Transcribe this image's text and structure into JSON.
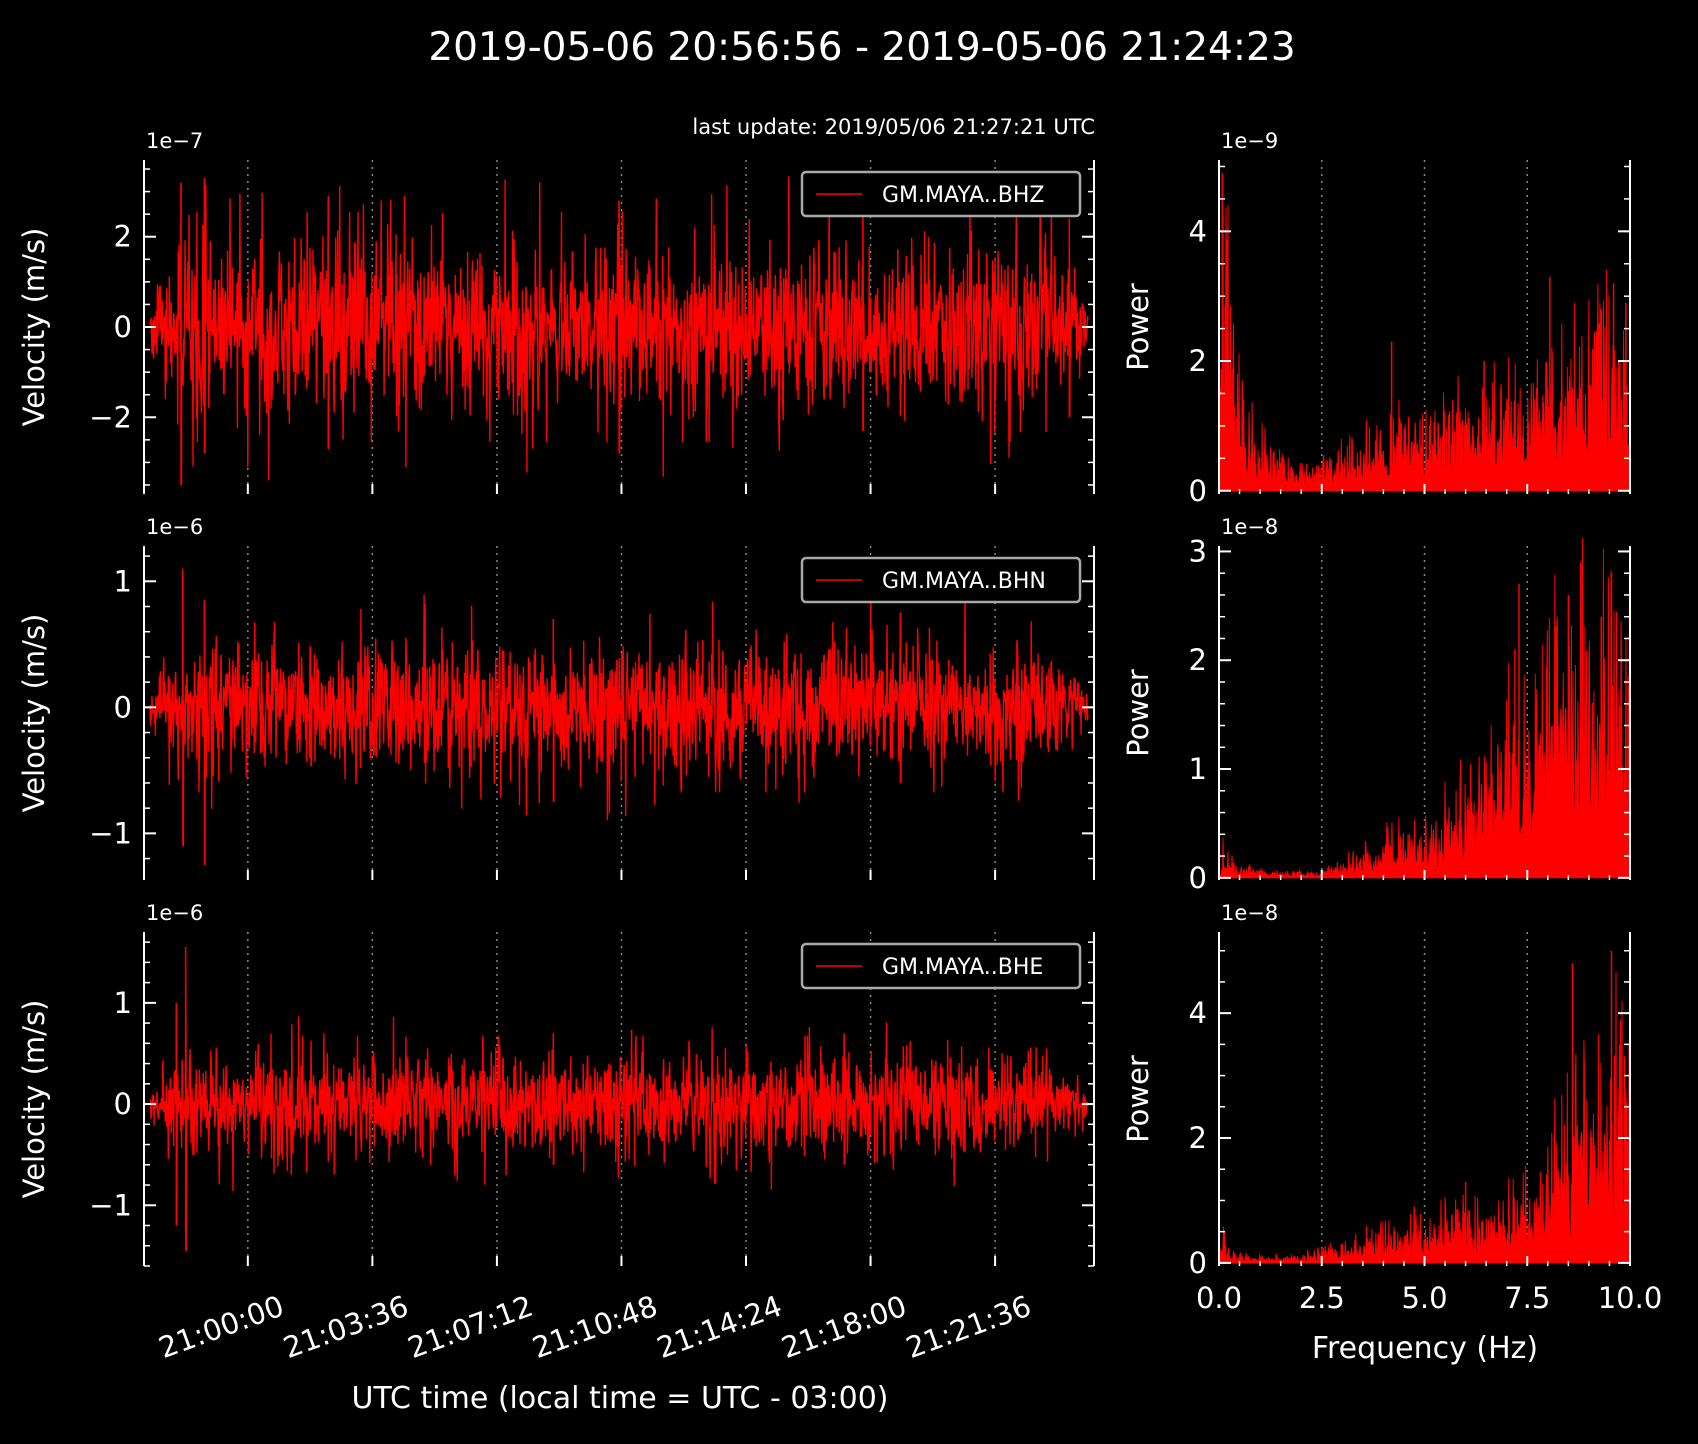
{
  "title": "2019-05-06 20:56:56  -  2019-05-06 21:24:23",
  "last_update": "last update: 2019/05/06 21:27:21 UTC",
  "colors": {
    "background": "#000000",
    "trace": "#ff0000",
    "axes": "#ffffff",
    "grid": "#888888",
    "legend_border": "#aaaaaa"
  },
  "time_axis": {
    "xlabel": "UTC time (local time = UTC - 03:00)",
    "start": "20:56:56",
    "end": "21:24:23",
    "tick_labels": [
      "21:00:00",
      "21:03:36",
      "21:07:12",
      "21:10:48",
      "21:14:24",
      "21:18:00",
      "21:21:36"
    ]
  },
  "freq_axis": {
    "xlabel": "Frequency (Hz)",
    "tick_labels": [
      "0.0",
      "2.5",
      "5.0",
      "7.5",
      "10.0"
    ],
    "ticks": [
      0,
      2.5,
      5,
      7.5,
      10
    ],
    "xlim": [
      0,
      10
    ]
  },
  "chart_data": [
    {
      "type": "line",
      "panel": "waveform",
      "channel": "GM.MAYA..BHZ",
      "ylabel": "Velocity (m/s)",
      "sci_offset": "1e−7",
      "ylim": [
        -3.7,
        3.7
      ],
      "yticks": [
        -2,
        0,
        2
      ],
      "ytick_labels": [
        "−2",
        "0",
        "2"
      ],
      "minor_step": 0.5,
      "envelope": {
        "base": 1.7,
        "rise_until": 0.05,
        "fall_from": 0.95
      },
      "peaks": [
        {
          "t": 0.033,
          "max": 3.2,
          "min": -3.5
        },
        {
          "t": 0.058,
          "max": 3.3,
          "min": -2.8
        },
        {
          "t": 0.19,
          "max": 2.9,
          "min": -2.7
        },
        {
          "t": 0.5,
          "max": 2.8,
          "min": -2.8
        },
        {
          "t": 0.76,
          "max": 2.6,
          "min": -2.3
        },
        {
          "t": 0.98,
          "max": 2.4,
          "min": -2.0
        }
      ]
    },
    {
      "type": "bar",
      "panel": "spectrum",
      "channel": "GM.MAYA..BHZ",
      "ylabel": "Power",
      "sci_offset": "1e−9",
      "ylim": [
        -0.05,
        5.1
      ],
      "yticks": [
        0,
        2,
        4
      ],
      "ytick_labels": [
        "0",
        "2",
        "4"
      ],
      "minor_step": 0.5,
      "freq": [
        0,
        0.1,
        0.3,
        0.6,
        1.0,
        1.5,
        2.0,
        2.5,
        3.0,
        3.5,
        4.0,
        4.5,
        5.0,
        5.5,
        6.0,
        6.5,
        7.0,
        7.5,
        8.0,
        8.5,
        9.0,
        9.5,
        10.0
      ],
      "power": [
        0.1,
        4.2,
        1.8,
        1.1,
        0.6,
        0.35,
        0.25,
        0.35,
        0.45,
        0.55,
        0.7,
        0.75,
        0.8,
        0.9,
        1.0,
        1.05,
        1.15,
        1.3,
        1.4,
        1.6,
        1.7,
        1.9,
        1.8
      ],
      "spikes": [
        {
          "f": 0.08,
          "p": 4.9
        },
        {
          "f": 0.17,
          "p": 3.0
        },
        {
          "f": 4.2,
          "p": 2.3
        },
        {
          "f": 6.45,
          "p": 2.0
        },
        {
          "f": 8.05,
          "p": 3.3
        },
        {
          "f": 9.3,
          "p": 2.8
        },
        {
          "f": 9.6,
          "p": 3.2
        },
        {
          "f": 9.9,
          "p": 2.9
        }
      ]
    },
    {
      "type": "line",
      "panel": "waveform",
      "channel": "GM.MAYA..BHN",
      "ylabel": "Velocity (m/s)",
      "sci_offset": "1e−6",
      "ylim": [
        -1.37,
        1.28
      ],
      "yticks": [
        -1,
        0,
        1
      ],
      "ytick_labels": [
        "−1",
        "0",
        "1"
      ],
      "minor_step": 0.2,
      "envelope": {
        "base": 0.45,
        "rise_until": 0.05,
        "fall_from": 0.95
      },
      "peaks": [
        {
          "t": 0.035,
          "max": 1.1,
          "min": -1.1
        },
        {
          "t": 0.058,
          "max": 0.85,
          "min": -1.25
        },
        {
          "t": 0.43,
          "max": 0.7,
          "min": -0.75
        },
        {
          "t": 0.8,
          "max": 0.75,
          "min": -0.6
        }
      ]
    },
    {
      "type": "bar",
      "panel": "spectrum",
      "channel": "GM.MAYA..BHN",
      "ylabel": "Power",
      "sci_offset": "1e−8",
      "ylim": [
        -0.02,
        3.05
      ],
      "yticks": [
        0,
        1,
        2,
        3
      ],
      "ytick_labels": [
        "0",
        "1",
        "2",
        "3"
      ],
      "minor_step": 0.2,
      "freq": [
        0,
        0.1,
        0.3,
        0.6,
        1.0,
        1.5,
        2.0,
        2.5,
        3.0,
        3.5,
        4.0,
        4.5,
        5.0,
        5.5,
        6.0,
        6.5,
        7.0,
        7.5,
        8.0,
        8.5,
        9.0,
        9.5,
        10.0
      ],
      "power": [
        0.05,
        0.2,
        0.1,
        0.07,
        0.05,
        0.04,
        0.04,
        0.05,
        0.1,
        0.18,
        0.25,
        0.3,
        0.35,
        0.45,
        0.55,
        0.8,
        1.1,
        1.3,
        1.45,
        1.6,
        1.7,
        1.75,
        1.5
      ],
      "spikes": [
        {
          "f": 7.3,
          "p": 2.7
        },
        {
          "f": 7.2,
          "p": 2.1
        },
        {
          "f": 8.5,
          "p": 2.6
        },
        {
          "f": 8.8,
          "p": 2.9
        },
        {
          "f": 9.55,
          "p": 2.8
        },
        {
          "f": 9.3,
          "p": 2.4
        }
      ]
    },
    {
      "type": "line",
      "panel": "waveform",
      "channel": "GM.MAYA..BHE",
      "ylabel": "Velocity (m/s)",
      "sci_offset": "1e−6",
      "ylim": [
        -1.6,
        1.7
      ],
      "yticks": [
        -1,
        0,
        1
      ],
      "ytick_labels": [
        "−1",
        "0",
        "1"
      ],
      "minor_step": 0.2,
      "envelope": {
        "base": 0.45,
        "rise_until": 0.05,
        "fall_from": 0.95
      },
      "peaks": [
        {
          "t": 0.038,
          "max": 1.55,
          "min": -1.45
        },
        {
          "t": 0.028,
          "max": 1.0,
          "min": -1.2
        },
        {
          "t": 0.43,
          "max": 0.7,
          "min": -0.6
        },
        {
          "t": 0.74,
          "max": 0.7,
          "min": -0.6
        }
      ]
    },
    {
      "type": "bar",
      "panel": "spectrum",
      "channel": "GM.MAYA..BHE",
      "ylabel": "Power",
      "sci_offset": "1e−8",
      "ylim": [
        -0.05,
        5.3
      ],
      "yticks": [
        0,
        2,
        4
      ],
      "ytick_labels": [
        "0",
        "2",
        "4"
      ],
      "minor_step": 0.5,
      "freq": [
        0,
        0.1,
        0.3,
        0.6,
        1.0,
        1.5,
        2.0,
        2.5,
        3.0,
        3.5,
        4.0,
        4.5,
        5.0,
        5.5,
        6.0,
        6.5,
        7.0,
        7.5,
        8.0,
        8.5,
        9.0,
        9.5,
        10.0
      ],
      "power": [
        0.05,
        0.3,
        0.15,
        0.1,
        0.08,
        0.08,
        0.1,
        0.15,
        0.2,
        0.28,
        0.35,
        0.4,
        0.45,
        0.55,
        0.65,
        0.55,
        0.75,
        0.9,
        1.2,
        1.7,
        2.0,
        2.6,
        2.3
      ],
      "spikes": [
        {
          "f": 4.75,
          "p": 0.9
        },
        {
          "f": 6.0,
          "p": 1.3
        },
        {
          "f": 8.6,
          "p": 4.8
        },
        {
          "f": 9.55,
          "p": 5.0
        },
        {
          "f": 9.75,
          "p": 3.5
        }
      ]
    }
  ],
  "layout_hint": "3 rows x 2 columns: waveform (left) and power spectrum (right) per channel"
}
